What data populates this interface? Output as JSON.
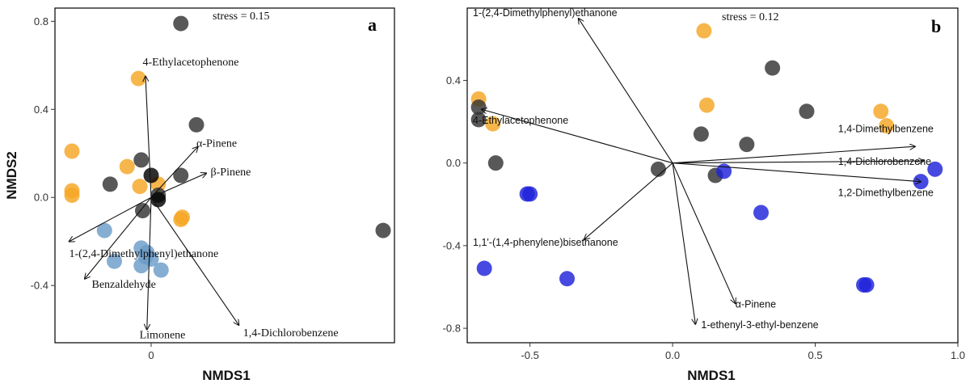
{
  "chart_data": [
    {
      "type": "scatter",
      "panel_letter": "a",
      "stress_label": "stress = 0.15",
      "xlabel": "NMDS1",
      "ylabel": "NMDS2",
      "xlim": [
        -0.68,
        1.72
      ],
      "ylim": [
        -0.66,
        0.86
      ],
      "x_ticks": [
        {
          "value": 0.0,
          "label": "0"
        }
      ],
      "y_ticks": [
        {
          "value": -0.4,
          "label": "-0.4"
        },
        {
          "value": 0.0,
          "label": "0.0"
        },
        {
          "value": 0.4,
          "label": "0.4"
        },
        {
          "value": 0.8,
          "label": "0.8"
        }
      ],
      "series": [
        {
          "color": "#f5a623",
          "points": [
            [
              -0.09,
              0.54
            ],
            [
              -0.56,
              0.21
            ],
            [
              -0.56,
              0.03
            ],
            [
              -0.56,
              0.01
            ],
            [
              -0.17,
              0.14
            ],
            [
              -0.08,
              0.05
            ],
            [
              0.05,
              0.06
            ],
            [
              0.22,
              -0.09
            ],
            [
              0.21,
              -0.1
            ]
          ]
        },
        {
          "color": "#333333",
          "points": [
            [
              0.21,
              0.79
            ],
            [
              0.32,
              0.33
            ],
            [
              0.21,
              0.1
            ],
            [
              -0.07,
              0.17
            ],
            [
              -0.29,
              0.06
            ],
            [
              -0.06,
              -0.06
            ],
            [
              1.64,
              -0.15
            ],
            [
              0.05,
              0.01
            ]
          ]
        },
        {
          "color": "#000000",
          "points": [
            [
              0.0,
              0.1
            ],
            [
              0.05,
              -0.01
            ]
          ]
        },
        {
          "color": "#6b9cc8",
          "points": [
            [
              -0.33,
              -0.15
            ],
            [
              -0.26,
              -0.29
            ],
            [
              -0.07,
              -0.23
            ],
            [
              -0.04,
              -0.27
            ],
            [
              0.0,
              -0.28
            ],
            [
              -0.07,
              -0.31
            ],
            [
              0.07,
              -0.33
            ],
            [
              -0.03,
              -0.25
            ]
          ]
        }
      ],
      "vectors": [
        {
          "label": "4-Ethylacetophenone",
          "x": -0.04,
          "y": 0.55,
          "label_x": -0.06,
          "label_y": 0.6,
          "anchor": "start"
        },
        {
          "label": "α-Pinene",
          "x": 0.33,
          "y": 0.23,
          "label_x": 0.32,
          "label_y": 0.23,
          "anchor": "start"
        },
        {
          "label": "β-Pinene",
          "x": 0.39,
          "y": 0.11,
          "label_x": 0.42,
          "label_y": 0.1,
          "anchor": "start"
        },
        {
          "label": "1-(2,4-Dimethylphenyl)ethanone",
          "x": -0.58,
          "y": -0.2,
          "label_x": -0.58,
          "label_y": -0.27,
          "anchor": "start"
        },
        {
          "label": "Benzaldehyde",
          "x": -0.47,
          "y": -0.37,
          "label_x": -0.42,
          "label_y": -0.41,
          "anchor": "start"
        },
        {
          "label": "Limonene",
          "x": -0.03,
          "y": -0.6,
          "label_x": 0.08,
          "label_y": -0.64,
          "anchor": "middle"
        },
        {
          "label": "1,4-Dichlorobenzene",
          "x": 0.62,
          "y": -0.58,
          "label_x": 0.65,
          "label_y": -0.63,
          "anchor": "start"
        }
      ]
    },
    {
      "type": "scatter",
      "panel_letter": "b",
      "stress_label": "stress = 0.12",
      "xlabel": "NMDS1",
      "ylabel": "",
      "xlim": [
        -0.72,
        1.0
      ],
      "ylim": [
        -0.87,
        0.75
      ],
      "x_ticks": [
        {
          "value": -0.5,
          "label": "-0.5"
        },
        {
          "value": 0.0,
          "label": "0.0"
        },
        {
          "value": 0.5,
          "label": "0.5"
        },
        {
          "value": 1.0,
          "label": "1.0"
        }
      ],
      "y_ticks": [
        {
          "value": -0.8,
          "label": "-0.8"
        },
        {
          "value": -0.4,
          "label": "-0.4"
        },
        {
          "value": 0.0,
          "label": "0.0"
        },
        {
          "value": 0.4,
          "label": "0.4"
        }
      ],
      "series": [
        {
          "color": "#f5a623",
          "points": [
            [
              -0.68,
              0.31
            ],
            [
              -0.63,
              0.19
            ],
            [
              0.11,
              0.64
            ],
            [
              0.12,
              0.28
            ],
            [
              0.73,
              0.25
            ],
            [
              0.75,
              0.18
            ]
          ]
        },
        {
          "color": "#333333",
          "points": [
            [
              -0.68,
              0.27
            ],
            [
              -0.68,
              0.21
            ],
            [
              -0.62,
              0.0
            ],
            [
              -0.05,
              -0.03
            ],
            [
              0.1,
              0.14
            ],
            [
              0.15,
              -0.06
            ],
            [
              0.26,
              0.09
            ],
            [
              0.35,
              0.46
            ],
            [
              0.47,
              0.25
            ]
          ]
        },
        {
          "color": "#1f22d9",
          "points": [
            [
              -0.51,
              -0.15
            ],
            [
              -0.5,
              -0.15
            ],
            [
              -0.37,
              -0.56
            ],
            [
              -0.66,
              -0.51
            ],
            [
              0.18,
              -0.04
            ],
            [
              0.31,
              -0.24
            ],
            [
              0.67,
              -0.59
            ],
            [
              0.68,
              -0.59
            ],
            [
              0.87,
              -0.09
            ],
            [
              0.92,
              -0.03
            ]
          ]
        }
      ],
      "vectors": [
        {
          "label": "1-(2,4-Dimethylphenyl)ethanone",
          "x": -0.33,
          "y": 0.7,
          "label_x": -0.7,
          "label_y": 0.71,
          "anchor": "start"
        },
        {
          "label": "4-Ethylacetophenone",
          "x": -0.67,
          "y": 0.26,
          "label_x": -0.7,
          "label_y": 0.19,
          "anchor": "start"
        },
        {
          "label": "1,4-Dimethylbenzene",
          "x": 0.85,
          "y": 0.08,
          "label_x": 0.58,
          "label_y": 0.15,
          "anchor": "start"
        },
        {
          "label": "1,4-Dichlorobenzene",
          "x": 0.88,
          "y": 0.01,
          "label_x": 0.58,
          "label_y": -0.01,
          "anchor": "start"
        },
        {
          "label": "1,2-Dimethylbenzene",
          "x": 0.87,
          "y": -0.09,
          "label_x": 0.58,
          "label_y": -0.16,
          "anchor": "start"
        },
        {
          "label": "1,1'-(1,4-phenylene)bisethanone",
          "x": -0.31,
          "y": -0.37,
          "label_x": -0.7,
          "label_y": -0.4,
          "anchor": "start"
        },
        {
          "label": "α-Pinene",
          "x": 0.22,
          "y": -0.68,
          "label_x": 0.22,
          "label_y": -0.7,
          "anchor": "start"
        },
        {
          "label": "1-ethenyl-3-ethyl-benzene",
          "x": 0.08,
          "y": -0.78,
          "label_x": 0.1,
          "label_y": -0.8,
          "anchor": "start"
        }
      ]
    }
  ]
}
